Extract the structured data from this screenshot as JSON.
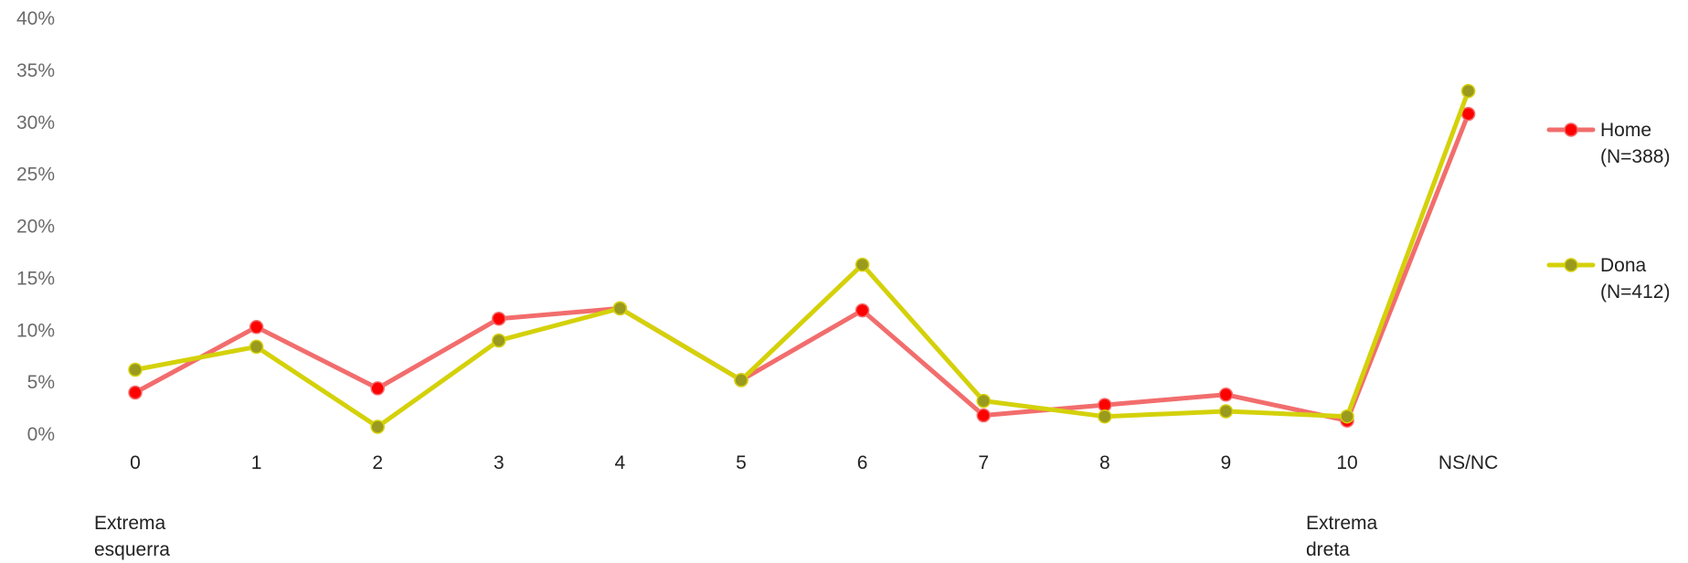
{
  "chart_data": {
    "type": "line",
    "categories": [
      "0",
      "1",
      "2",
      "3",
      "4",
      "5",
      "6",
      "7",
      "8",
      "9",
      "10",
      "NS/NC"
    ],
    "y_ticks": [
      "0%",
      "5%",
      "10%",
      "15%",
      "20%",
      "25%",
      "30%",
      "35%",
      "40%"
    ],
    "ylim": [
      0,
      40
    ],
    "grid": false,
    "legend_position": "right",
    "category_notes": [
      {
        "category": "0",
        "lines": [
          "Extrema",
          "esquerra"
        ]
      },
      {
        "category": "10",
        "lines": [
          "Extrema",
          "dreta"
        ]
      }
    ],
    "series": [
      {
        "name": "Home (N=388)",
        "legend_lines": [
          "Home",
          "(N=388)"
        ],
        "line_color": "#f26d6d",
        "marker_color": "#ff0000",
        "values": [
          4.0,
          10.3,
          4.4,
          11.1,
          12.1,
          5.2,
          11.9,
          1.8,
          2.8,
          3.8,
          1.3,
          30.8
        ]
      },
      {
        "name": "Dona (N=412)",
        "legend_lines": [
          "Dona",
          "(N=412)"
        ],
        "line_color": "#d4d10a",
        "marker_color": "#9a9a1e",
        "values": [
          6.2,
          8.4,
          0.7,
          9.0,
          12.1,
          5.2,
          16.3,
          3.2,
          1.7,
          2.2,
          1.7,
          33.0
        ]
      }
    ]
  }
}
